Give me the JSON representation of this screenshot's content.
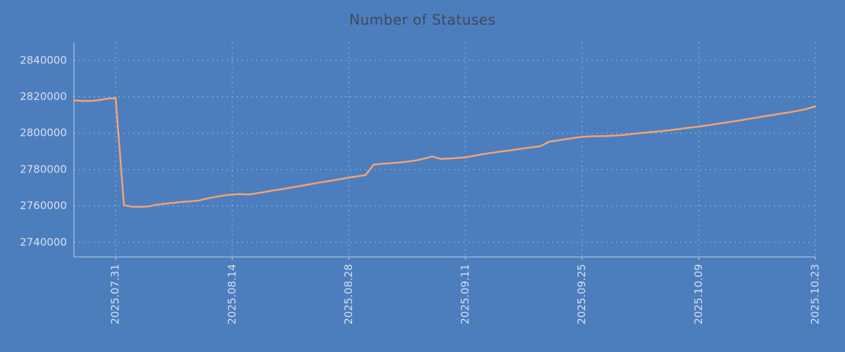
{
  "colors": {
    "background": "#4c7ebd",
    "line": "#f3a372",
    "grid": "#c3d1ea",
    "axis": "#cdd6ec",
    "tick_label": "#d8def0",
    "title": "#424858"
  },
  "chart_data": {
    "type": "line",
    "title": "Number of Statuses",
    "series_name": "statuses",
    "legend": "none",
    "grid": "dotted",
    "ylim": [
      2732000,
      2850000
    ],
    "y_ticks": [
      2740000,
      2760000,
      2780000,
      2800000,
      2820000,
      2840000
    ],
    "x_ticks": [
      "2025.07.31",
      "2025.08.14",
      "2025.08.28",
      "2025.09.11",
      "2025.09.25",
      "2025.10.09",
      "2025.10.23"
    ],
    "x": [
      "2025-07-26",
      "2025-07-27",
      "2025-07-28",
      "2025-07-29",
      "2025-07-30",
      "2025-07-31",
      "2025-08-01",
      "2025-08-02",
      "2025-08-03",
      "2025-08-04",
      "2025-08-05",
      "2025-08-06",
      "2025-08-07",
      "2025-08-08",
      "2025-08-09",
      "2025-08-10",
      "2025-08-11",
      "2025-08-12",
      "2025-08-13",
      "2025-08-14",
      "2025-08-15",
      "2025-08-16",
      "2025-08-17",
      "2025-08-18",
      "2025-08-19",
      "2025-08-20",
      "2025-08-21",
      "2025-08-22",
      "2025-08-23",
      "2025-08-24",
      "2025-08-25",
      "2025-08-26",
      "2025-08-27",
      "2025-08-28",
      "2025-08-29",
      "2025-08-30",
      "2025-08-31",
      "2025-09-01",
      "2025-09-02",
      "2025-09-03",
      "2025-09-04",
      "2025-09-05",
      "2025-09-06",
      "2025-09-07",
      "2025-09-08",
      "2025-09-09",
      "2025-09-10",
      "2025-09-11",
      "2025-09-12",
      "2025-09-13",
      "2025-09-14",
      "2025-09-15",
      "2025-09-16",
      "2025-09-17",
      "2025-09-18",
      "2025-09-19",
      "2025-09-20",
      "2025-09-21",
      "2025-09-22",
      "2025-09-23",
      "2025-09-24",
      "2025-09-25",
      "2025-09-26",
      "2025-09-27",
      "2025-09-28",
      "2025-09-29",
      "2025-09-30",
      "2025-10-01",
      "2025-10-02",
      "2025-10-03",
      "2025-10-04",
      "2025-10-05",
      "2025-10-06",
      "2025-10-07",
      "2025-10-08",
      "2025-10-09",
      "2025-10-10",
      "2025-10-11",
      "2025-10-12",
      "2025-10-13",
      "2025-10-14",
      "2025-10-15",
      "2025-10-16",
      "2025-10-17",
      "2025-10-18",
      "2025-10-19",
      "2025-10-20",
      "2025-10-21",
      "2025-10-22",
      "2025-10-23"
    ],
    "values": [
      2818000,
      2817800,
      2817700,
      2818200,
      2819000,
      2819300,
      2760500,
      2759600,
      2759500,
      2759800,
      2760800,
      2761300,
      2761800,
      2762300,
      2762600,
      2763000,
      2764200,
      2765000,
      2765800,
      2766300,
      2766600,
      2766300,
      2767000,
      2767800,
      2768600,
      2769300,
      2770100,
      2770900,
      2771700,
      2772500,
      2773300,
      2774000,
      2774800,
      2775600,
      2776300,
      2777000,
      2782800,
      2783200,
      2783500,
      2783900,
      2784400,
      2785000,
      2786000,
      2787200,
      2785900,
      2786100,
      2786400,
      2786700,
      2787600,
      2788400,
      2789100,
      2789800,
      2790400,
      2791000,
      2791700,
      2792300,
      2792800,
      2795300,
      2796000,
      2796700,
      2797400,
      2798000,
      2798300,
      2798400,
      2798500,
      2798700,
      2799100,
      2799600,
      2800100,
      2800500,
      2800900,
      2801400,
      2801900,
      2802500,
      2803100,
      2803700,
      2804300,
      2805000,
      2805700,
      2806400,
      2807100,
      2807900,
      2808600,
      2809400,
      2810100,
      2810900,
      2811600,
      2812400,
      2813400,
      2814800
    ]
  }
}
